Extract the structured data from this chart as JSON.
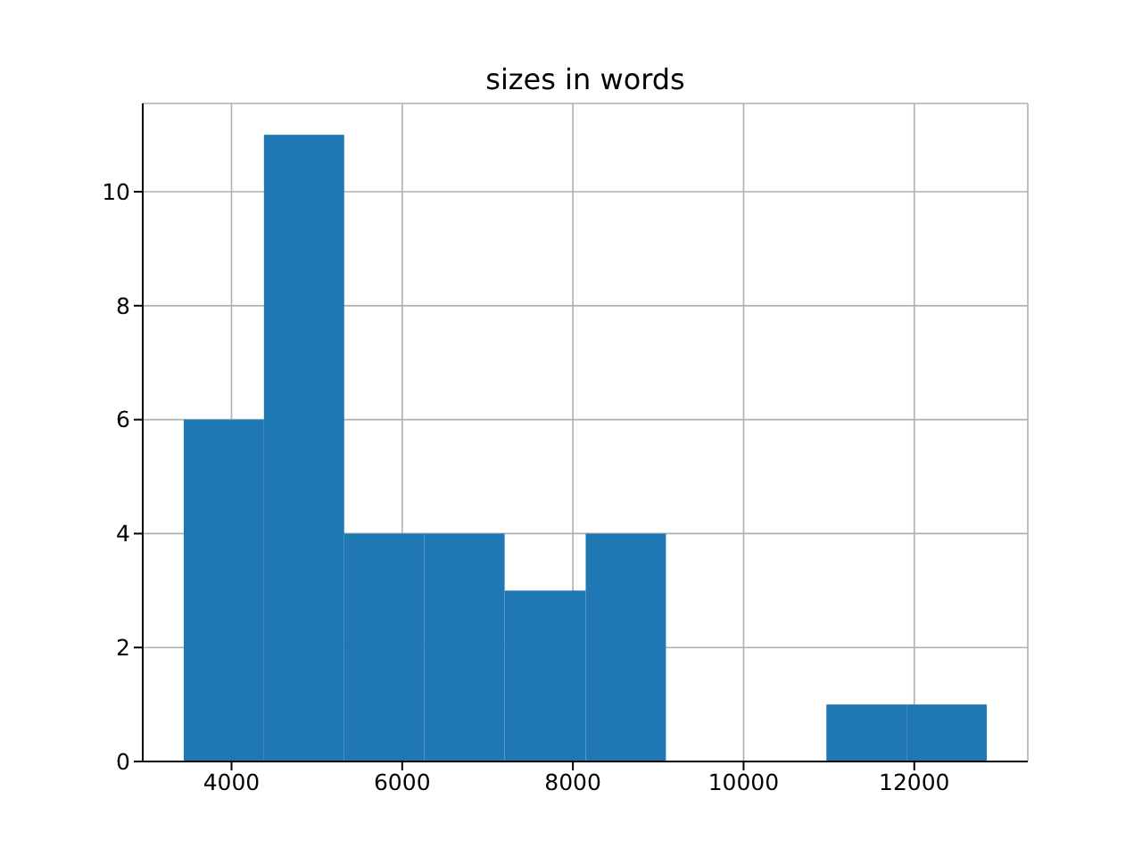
{
  "chart_data": {
    "type": "histogram",
    "title": "sizes in words",
    "bins": [
      3440,
      4380,
      5320,
      6260,
      7200,
      8150,
      9090,
      10970,
      11910,
      12850
    ],
    "values": [
      6,
      11,
      4,
      4,
      3,
      4,
      0,
      1,
      1
    ],
    "color": "#1f77b4",
    "xlim": [
      2960,
      13330
    ],
    "ylim": [
      0,
      11.55
    ],
    "xticks": [
      4000,
      6000,
      8000,
      10000,
      12000
    ],
    "yticks": [
      0,
      2,
      4,
      6,
      8,
      10
    ],
    "grid": true
  }
}
